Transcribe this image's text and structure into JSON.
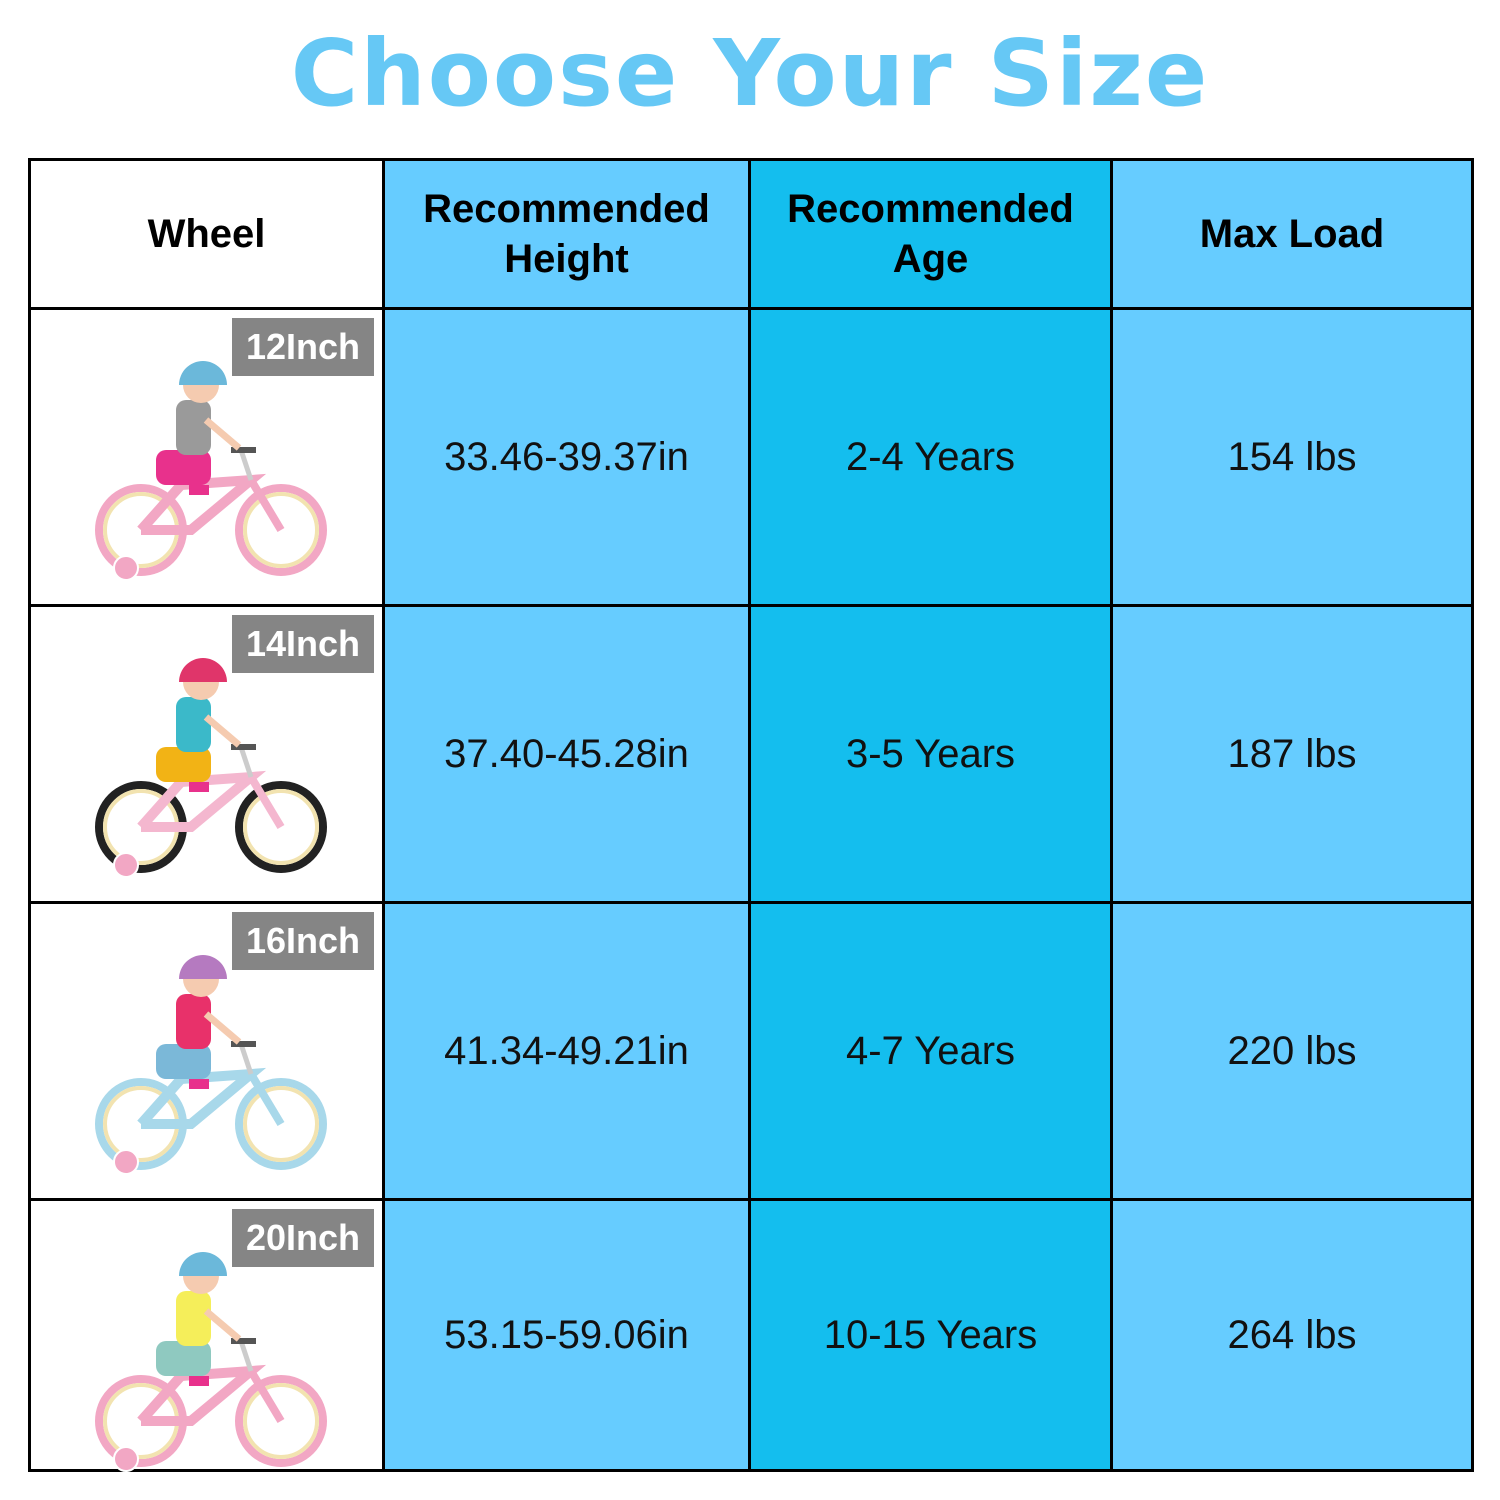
{
  "title": "Choose Your Size",
  "colors": {
    "title": "#66C8F5",
    "column_light": "#66CCFF",
    "column_age": "#14BEEE",
    "badge": "#858585"
  },
  "table": {
    "headers": [
      "Wheel",
      "Recommended Height",
      "Recommended Age",
      "Max Load"
    ],
    "rows": [
      {
        "wheel": "12Inch",
        "height": "33.46-39.37in",
        "age": "2-4 Years",
        "load": "154 lbs",
        "helmet": "#6BB8DA",
        "frame": "#F2A7C4",
        "shirt": "#9A9A9A",
        "bottom": "#E8318C"
      },
      {
        "wheel": "14Inch",
        "height": "37.40-45.28in",
        "age": "3-5 Years",
        "load": "187 lbs",
        "helmet": "#E0356A",
        "frame": "#F4B7CF",
        "shirt": "#3BB9C9",
        "bottom": "#F2B315"
      },
      {
        "wheel": "16Inch",
        "height": "41.34-49.21in",
        "age": "4-7 Years",
        "load": "220 lbs",
        "helmet": "#B57AC0",
        "frame": "#A8D8EA",
        "shirt": "#E8316A",
        "bottom": "#7BB8D8"
      },
      {
        "wheel": "20Inch",
        "height": "53.15-59.06in",
        "age": "10-15 Years",
        "load": "264 lbs",
        "helmet": "#6BB8DA",
        "frame": "#F2A7C4",
        "shirt": "#F5EE5A",
        "bottom": "#8FC9C0"
      }
    ]
  }
}
